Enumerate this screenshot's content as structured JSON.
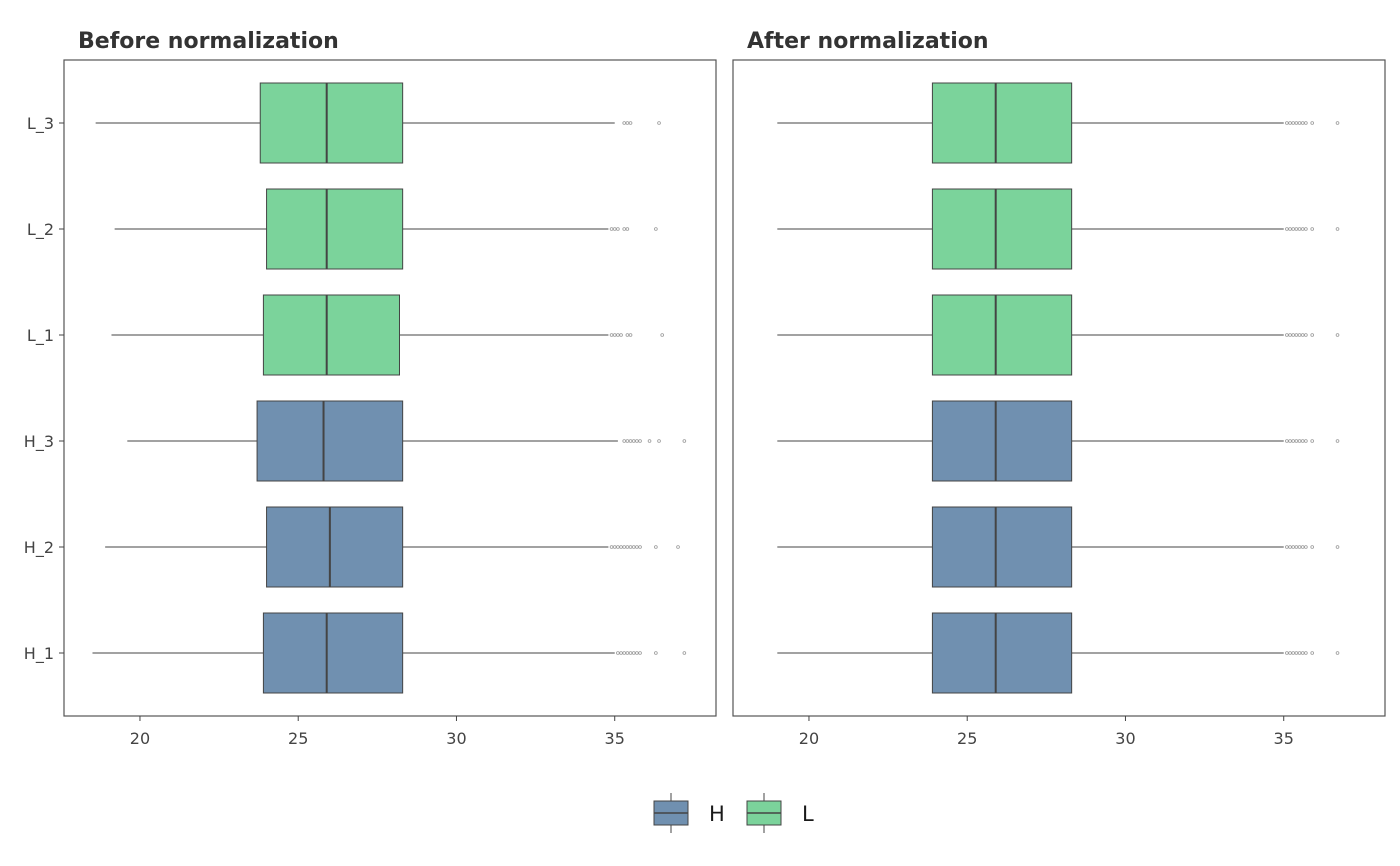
{
  "colors": {
    "H": "#7090b0",
    "L": "#7bd39b",
    "box_stroke": "#444444",
    "whisker": "#444444",
    "outlier": "#9a9a9a",
    "frame": "#555555"
  },
  "legend": {
    "position": "bottom",
    "items": [
      {
        "label": "H",
        "group": "H"
      },
      {
        "label": "L",
        "group": "L"
      }
    ]
  },
  "chart_data": [
    {
      "type": "boxplot",
      "orientation": "horizontal",
      "title": "Before normalization",
      "xlim": [
        17.6,
        38.2
      ],
      "xticks": [
        20,
        25,
        30,
        35
      ],
      "categories": [
        "H_1",
        "H_2",
        "H_3",
        "L_1",
        "L_2",
        "L_3"
      ],
      "grid": false,
      "boxes": [
        {
          "name": "H_1",
          "group": "H",
          "whisker_low": 18.5,
          "q1": 23.9,
          "median": 25.9,
          "q3": 28.3,
          "whisker_high": 35.0,
          "outliers": [
            35.1,
            35.2,
            35.3,
            35.4,
            35.5,
            35.6,
            35.7,
            35.8,
            36.3,
            37.2
          ]
        },
        {
          "name": "H_2",
          "group": "H",
          "whisker_low": 18.9,
          "q1": 24.0,
          "median": 26.0,
          "q3": 28.3,
          "whisker_high": 34.8,
          "outliers": [
            34.9,
            35.0,
            35.1,
            35.2,
            35.3,
            35.4,
            35.5,
            35.6,
            35.7,
            35.8,
            36.3,
            37.0
          ]
        },
        {
          "name": "H_3",
          "group": "H",
          "whisker_low": 19.6,
          "q1": 23.7,
          "median": 25.8,
          "q3": 28.3,
          "whisker_high": 35.1,
          "outliers": [
            35.3,
            35.4,
            35.5,
            35.6,
            35.7,
            35.8,
            36.1,
            36.4,
            37.2
          ]
        },
        {
          "name": "L_1",
          "group": "L",
          "whisker_low": 19.1,
          "q1": 23.9,
          "median": 25.9,
          "q3": 28.2,
          "whisker_high": 34.8,
          "outliers": [
            34.9,
            35.0,
            35.1,
            35.2,
            35.4,
            35.5,
            36.5
          ]
        },
        {
          "name": "L_2",
          "group": "L",
          "whisker_low": 19.2,
          "q1": 24.0,
          "median": 25.9,
          "q3": 28.3,
          "whisker_high": 34.8,
          "outliers": [
            34.9,
            35.0,
            35.1,
            35.3,
            35.4,
            36.3
          ]
        },
        {
          "name": "L_3",
          "group": "L",
          "whisker_low": 18.6,
          "q1": 23.8,
          "median": 25.9,
          "q3": 28.3,
          "whisker_high": 35.0,
          "outliers": [
            35.3,
            35.4,
            35.5,
            36.4
          ]
        }
      ]
    },
    {
      "type": "boxplot",
      "orientation": "horizontal",
      "title": "After normalization",
      "xlim": [
        17.6,
        38.2
      ],
      "xticks": [
        20,
        25,
        30,
        35
      ],
      "categories": [
        "H_1",
        "H_2",
        "H_3",
        "L_1",
        "L_2",
        "L_3"
      ],
      "grid": false,
      "boxes": [
        {
          "name": "H_1",
          "group": "H",
          "whisker_low": 19.0,
          "q1": 23.9,
          "median": 25.9,
          "q3": 28.3,
          "whisker_high": 35.0,
          "outliers": [
            35.1,
            35.2,
            35.3,
            35.4,
            35.5,
            35.6,
            35.7,
            35.9,
            36.7
          ]
        },
        {
          "name": "H_2",
          "group": "H",
          "whisker_low": 19.0,
          "q1": 23.9,
          "median": 25.9,
          "q3": 28.3,
          "whisker_high": 35.0,
          "outliers": [
            35.1,
            35.2,
            35.3,
            35.4,
            35.5,
            35.6,
            35.7,
            35.9,
            36.7
          ]
        },
        {
          "name": "H_3",
          "group": "H",
          "whisker_low": 19.0,
          "q1": 23.9,
          "median": 25.9,
          "q3": 28.3,
          "whisker_high": 35.0,
          "outliers": [
            35.1,
            35.2,
            35.3,
            35.4,
            35.5,
            35.6,
            35.7,
            35.9,
            36.7
          ]
        },
        {
          "name": "L_1",
          "group": "L",
          "whisker_low": 19.0,
          "q1": 23.9,
          "median": 25.9,
          "q3": 28.3,
          "whisker_high": 35.0,
          "outliers": [
            35.1,
            35.2,
            35.3,
            35.4,
            35.5,
            35.6,
            35.7,
            35.9,
            36.7
          ]
        },
        {
          "name": "L_2",
          "group": "L",
          "whisker_low": 19.0,
          "q1": 23.9,
          "median": 25.9,
          "q3": 28.3,
          "whisker_high": 35.0,
          "outliers": [
            35.1,
            35.2,
            35.3,
            35.4,
            35.5,
            35.6,
            35.7,
            35.9,
            36.7
          ]
        },
        {
          "name": "L_3",
          "group": "L",
          "whisker_low": 19.0,
          "q1": 23.9,
          "median": 25.9,
          "q3": 28.3,
          "whisker_high": 35.0,
          "outliers": [
            35.1,
            35.2,
            35.3,
            35.4,
            35.5,
            35.6,
            35.7,
            35.9,
            36.7
          ]
        }
      ]
    }
  ]
}
